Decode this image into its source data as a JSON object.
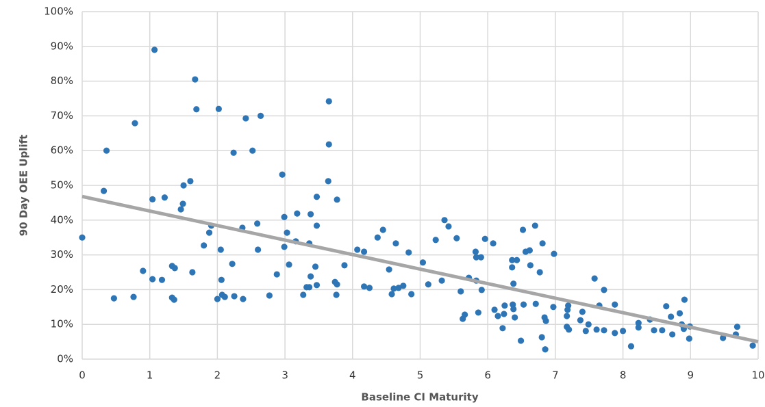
{
  "chart_data": {
    "type": "scatter",
    "x_label": "Baseline CI Maturity",
    "y_label": "90 Day OEE Uplift",
    "xlim": [
      0,
      10
    ],
    "xticks": [
      0,
      1,
      2,
      3,
      4,
      5,
      6,
      7,
      8,
      9,
      10
    ],
    "ylim": [
      0,
      100
    ],
    "yticks": [
      {
        "value": 0,
        "label": "0%"
      },
      {
        "value": 10,
        "label": "10%"
      },
      {
        "value": 20,
        "label": "20%"
      },
      {
        "value": 30,
        "label": "30%"
      },
      {
        "value": 40,
        "label": "40%"
      },
      {
        "value": 50,
        "label": "50%"
      },
      {
        "value": 60,
        "label": "60%"
      },
      {
        "value": 70,
        "label": "70%"
      },
      {
        "value": 80,
        "label": "80%"
      },
      {
        "value": 90,
        "label": "90%"
      },
      {
        "value": 100,
        "label": "100%"
      }
    ],
    "grid": true,
    "color": "#2e75b6",
    "x": [
      0,
      0.32,
      0.36,
      0.47,
      0.76,
      0.78,
      0.9,
      1.07,
      1.04,
      1.04,
      1.18,
      1.22,
      1.33,
      1.33,
      1.36,
      1.37,
      1.46,
      1.49,
      1.5,
      1.6,
      1.63,
      1.67,
      1.69,
      1.8,
      1.88,
      1.91,
      2.0,
      2.02,
      2.05,
      2.06,
      2.07,
      2.11,
      2.22,
      2.24,
      2.25,
      2.37,
      2.38,
      2.42,
      2.52,
      2.59,
      2.6,
      2.64,
      2.77,
      2.88,
      2.96,
      2.99,
      2.99,
      3.03,
      3.06,
      3.16,
      3.18,
      3.27,
      3.32,
      3.36,
      3.36,
      3.38,
      3.38,
      3.45,
      3.47,
      3.47,
      3.47,
      3.65,
      3.65,
      3.64,
      3.74,
      3.76,
      3.77,
      3.77,
      3.88,
      4.07,
      4.17,
      4.17,
      4.25,
      4.37,
      4.45,
      4.54,
      4.58,
      4.61,
      4.64,
      4.68,
      4.75,
      4.83,
      4.87,
      5.04,
      5.12,
      5.23,
      5.32,
      5.36,
      5.42,
      5.54,
      5.6,
      5.63,
      5.66,
      5.72,
      5.82,
      5.83,
      5.83,
      5.86,
      5.9,
      5.91,
      5.96,
      6.08,
      6.1,
      6.15,
      6.22,
      6.24,
      6.25,
      6.36,
      6.36,
      6.37,
      6.38,
      6.4,
      6.38,
      6.43,
      6.49,
      6.52,
      6.53,
      6.56,
      6.62,
      6.63,
      6.7,
      6.71,
      6.77,
      6.8,
      6.81,
      6.84,
      6.85,
      6.86,
      6.98,
      6.97,
      7.17,
      7.17,
      7.18,
      7.19,
      7.2,
      7.37,
      7.4,
      7.45,
      7.49,
      7.58,
      7.61,
      7.65,
      7.72,
      7.72,
      7.88,
      7.88,
      8.0,
      8.12,
      8.23,
      8.23,
      8.4,
      8.46,
      8.58,
      8.64,
      8.71,
      8.73,
      8.84,
      8.87,
      8.9,
      8.91,
      8.98,
      8.99,
      9.48,
      9.67,
      9.69,
      9.92
    ],
    "y": [
      35,
      48.4,
      60,
      17.5,
      17.9,
      67.9,
      25.4,
      89,
      46,
      23,
      22.8,
      46.5,
      26.8,
      17.7,
      17.1,
      26.2,
      43.1,
      44.7,
      50,
      51.2,
      25,
      80.5,
      71.9,
      32.7,
      36.4,
      38.4,
      17.3,
      72,
      31.5,
      22.8,
      18.5,
      17.9,
      27.4,
      59.4,
      18.1,
      37.8,
      17.3,
      69.3,
      60,
      39,
      31.5,
      70,
      18.3,
      24.4,
      53.1,
      40.9,
      32.3,
      36.4,
      27.2,
      33.9,
      41.9,
      18.5,
      20.7,
      20.7,
      33.3,
      41.7,
      23.8,
      26.6,
      21.3,
      46.7,
      38.4,
      74.2,
      61.8,
      51.2,
      22.2,
      18.5,
      21.5,
      45.9,
      27,
      31.5,
      30.9,
      20.9,
      20.5,
      35,
      37.2,
      25.8,
      18.7,
      20.3,
      33.3,
      20.5,
      21.1,
      30.7,
      18.7,
      27.8,
      21.5,
      34.3,
      22.6,
      40,
      38.2,
      34.8,
      19.5,
      11.6,
      12.8,
      23.4,
      30.9,
      29.3,
      22.6,
      13.4,
      29.3,
      19.9,
      34.6,
      33.3,
      14.2,
      12.4,
      8.9,
      13,
      15.4,
      28.5,
      26.4,
      15.7,
      21.7,
      12,
      14.4,
      28.5,
      5.3,
      37.2,
      15.7,
      30.9,
      31.3,
      27,
      38.4,
      15.9,
      25,
      6.3,
      33.3,
      12,
      2.8,
      11,
      30.3,
      15,
      9.3,
      12.4,
      14.2,
      15.4,
      8.5,
      11.2,
      13.6,
      8.1,
      10,
      23.2,
      8.5,
      15.4,
      19.9,
      8.3,
      15.7,
      7.5,
      8.1,
      3.7,
      10.4,
      9.1,
      11.4,
      8.3,
      8.3,
      15.2,
      12.2,
      7.1,
      13.2,
      10,
      8.7,
      17.1,
      5.9,
      9.4,
      6.1,
      7.1,
      9.3,
      3.9
    ],
    "trendline": {
      "x": [
        0,
        10
      ],
      "y": [
        46.8,
        5
      ],
      "color": "#a6a6a6"
    }
  }
}
